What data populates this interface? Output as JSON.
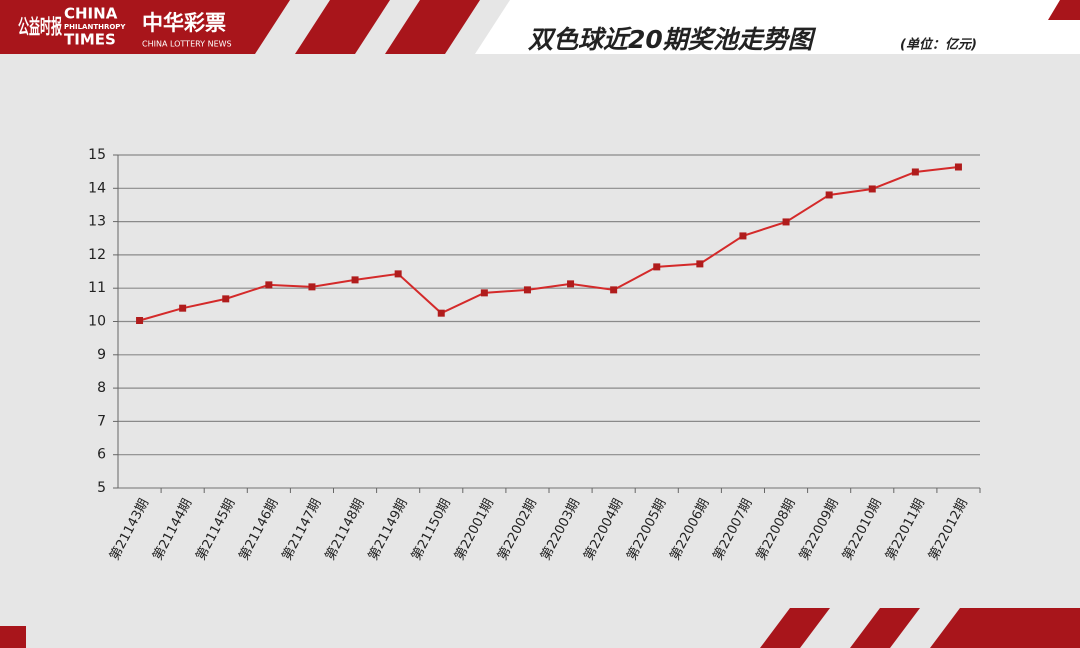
{
  "logos": {
    "philanthropy_cn": "公益时报",
    "philanthropy_en_1": "CHINA",
    "philanthropy_en_2": "PHILANTHROPY",
    "philanthropy_en_3": "TIMES",
    "lottery_cn": "中华彩票",
    "lottery_en": "CHINA LOTTERY NEWS"
  },
  "chart_data": {
    "type": "line",
    "title": "双色球近20期奖池走势图",
    "subtitle": "(单位：亿元)",
    "categories": [
      "第21143期",
      "第21144期",
      "第21145期",
      "第21146期",
      "第21147期",
      "第21148期",
      "第21149期",
      "第21150期",
      "第22001期",
      "第22002期",
      "第22003期",
      "第22004期",
      "第22005期",
      "第22006期",
      "第22007期",
      "第22008期",
      "第22009期",
      "第22010期",
      "第22011期",
      "第22012期"
    ],
    "series": [
      {
        "name": "奖池",
        "color": "#d42a2a",
        "values": [
          10.03,
          10.4,
          10.68,
          11.1,
          11.04,
          11.25,
          11.43,
          10.25,
          10.86,
          10.95,
          11.13,
          10.95,
          11.64,
          11.73,
          12.57,
          12.99,
          13.8,
          13.98,
          14.49,
          14.64
        ]
      }
    ],
    "marker_color": "#b01c1c",
    "ylim": [
      5,
      15
    ],
    "yticks": [
      5,
      6,
      7,
      8,
      9,
      10,
      11,
      12,
      13,
      14,
      15
    ],
    "grid": true
  }
}
